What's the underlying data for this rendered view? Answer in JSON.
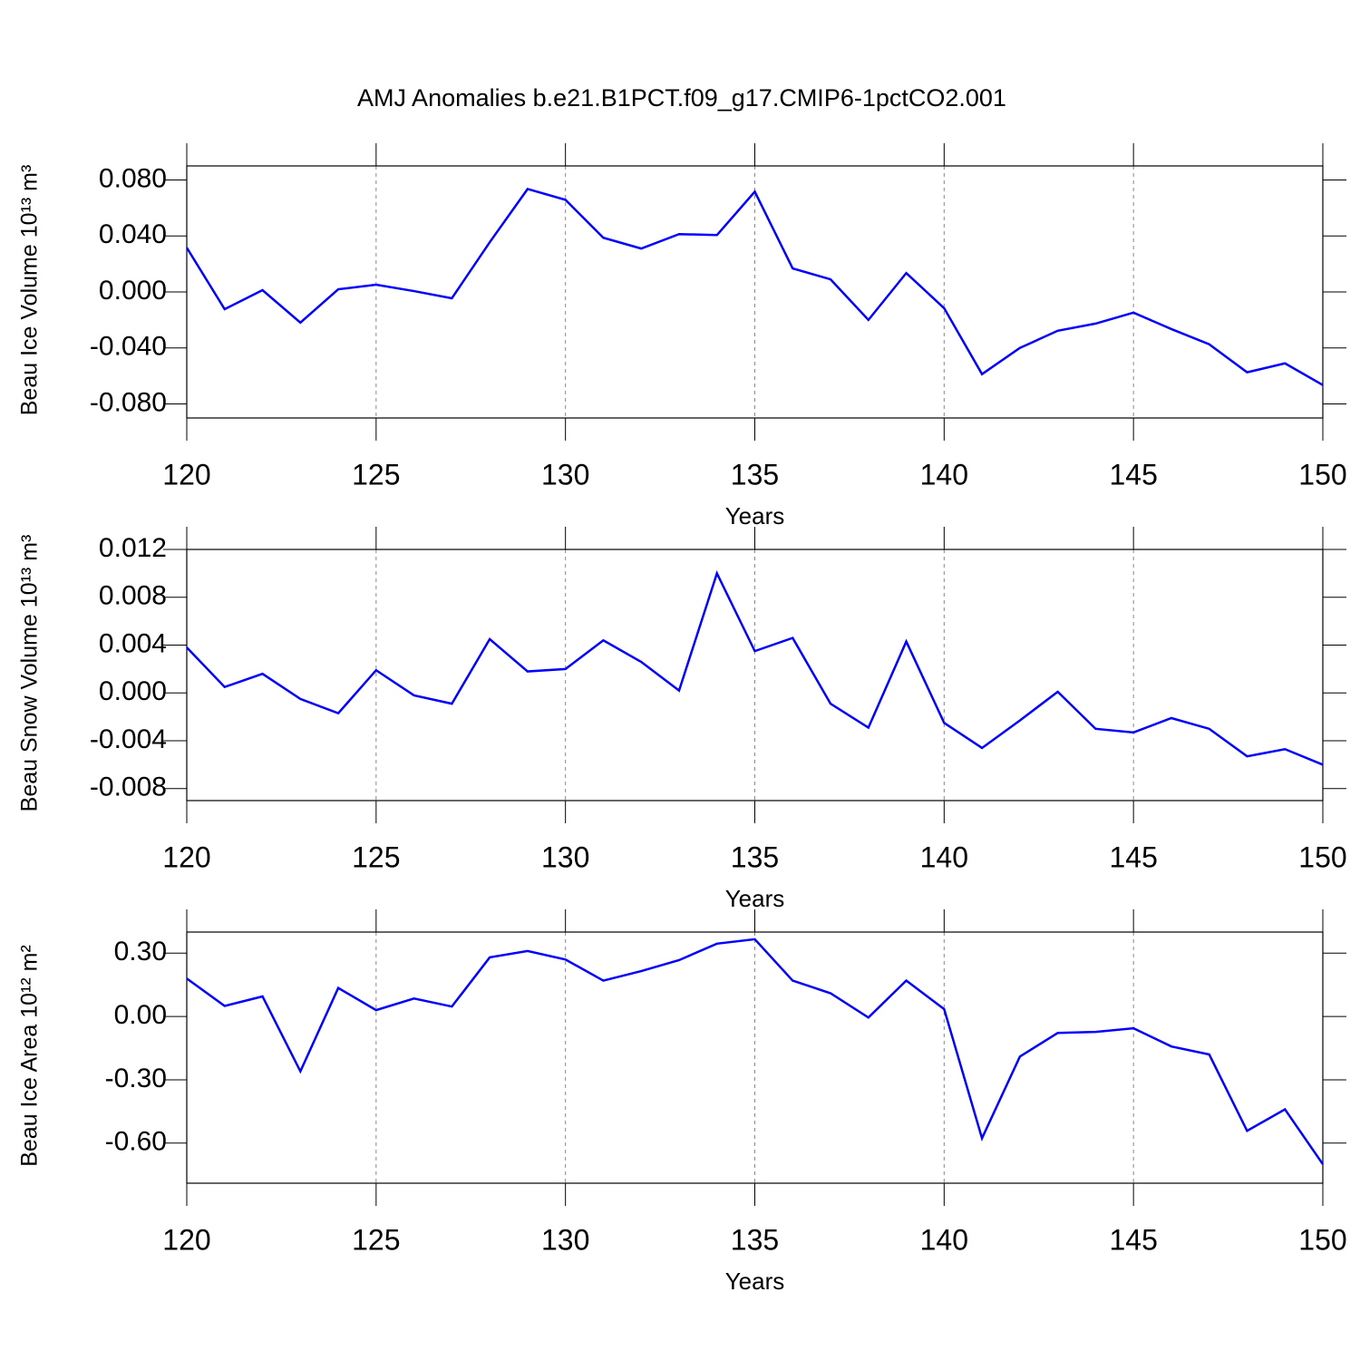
{
  "title": "AMJ Anomalies b.e21.B1PCT.f09_g17.CMIP6-1pctCO2.001",
  "chart_data": [
    {
      "type": "line",
      "ylabel": "Beau Ice Volume 10¹³ m³",
      "xlabel": "Years",
      "x": [
        120,
        121,
        122,
        123,
        124,
        125,
        126,
        127,
        128,
        129,
        130,
        131,
        132,
        133,
        134,
        135,
        136,
        137,
        138,
        139,
        140,
        141,
        142,
        143,
        144,
        145,
        146,
        147,
        148,
        149,
        150
      ],
      "series": [
        {
          "color": "#0000ff",
          "values": [
            0.0316,
            -0.0123,
            0.0013,
            -0.0219,
            0.0019,
            0.0052,
            0.0006,
            -0.0045,
            0.0355,
            0.0735,
            0.0658,
            0.0387,
            0.031,
            0.0413,
            0.0406,
            0.0716,
            0.0168,
            0.009,
            -0.02,
            0.0135,
            -0.0116,
            -0.0587,
            -0.04,
            -0.0277,
            -0.0226,
            -0.0148,
            -0.0265,
            -0.0374,
            -0.0574,
            -0.051,
            -0.0665
          ]
        }
      ],
      "xlim": [
        120,
        150
      ],
      "xticks": [
        120,
        125,
        130,
        135,
        140,
        145,
        150
      ],
      "ylim": [
        -0.09,
        0.09
      ],
      "yticks": [
        {
          "value": 0.08,
          "label": "0.080"
        },
        {
          "value": 0.04,
          "label": "0.040"
        },
        {
          "value": 0,
          "label": "0.000"
        },
        {
          "value": -0.04,
          "label": "-0.040"
        },
        {
          "value": -0.08,
          "label": "-0.080"
        }
      ],
      "grid": true
    },
    {
      "type": "line",
      "ylabel": "Beau Snow Volume 10¹³ m³",
      "xlabel": "Years",
      "x": [
        120,
        121,
        122,
        123,
        124,
        125,
        126,
        127,
        128,
        129,
        130,
        131,
        132,
        133,
        134,
        135,
        136,
        137,
        138,
        139,
        140,
        141,
        142,
        143,
        144,
        145,
        146,
        147,
        148,
        149,
        150
      ],
      "series": [
        {
          "color": "#0000ff",
          "values": [
            0.0038,
            0.0005,
            0.0016,
            -0.0005,
            -0.0017,
            0.0019,
            -0.0002,
            -0.0009,
            0.0045,
            0.0018,
            0.002,
            0.0044,
            0.0026,
            0.0002,
            0.01,
            0.0035,
            0.0046,
            -0.0009,
            -0.0029,
            0.0043,
            -0.0025,
            -0.0046,
            -0.0023,
            0.0001,
            -0.003,
            -0.0033,
            -0.0021,
            -0.003,
            -0.0053,
            -0.0047,
            -0.006
          ]
        }
      ],
      "xlim": [
        120,
        150
      ],
      "xticks": [
        120,
        125,
        130,
        135,
        140,
        145,
        150
      ],
      "ylim": [
        -0.009,
        0.012
      ],
      "yticks": [
        {
          "value": 0.012,
          "label": "0.012"
        },
        {
          "value": 0.008,
          "label": "0.008"
        },
        {
          "value": 0.004,
          "label": "0.004"
        },
        {
          "value": 0,
          "label": "0.000"
        },
        {
          "value": -0.004,
          "label": "-0.004"
        },
        {
          "value": -0.008,
          "label": "-0.008"
        }
      ],
      "grid": true
    },
    {
      "type": "line",
      "ylabel": "Beau Ice Area 10¹² m²",
      "xlabel": "Years",
      "x": [
        120,
        121,
        122,
        123,
        124,
        125,
        126,
        127,
        128,
        129,
        130,
        131,
        132,
        133,
        134,
        135,
        136,
        137,
        138,
        139,
        140,
        141,
        142,
        143,
        144,
        145,
        146,
        147,
        148,
        149,
        150
      ],
      "series": [
        {
          "color": "#0000ff",
          "values": [
            0.18,
            0.05,
            0.095,
            -0.26,
            0.135,
            0.03,
            0.085,
            0.047,
            0.28,
            0.31,
            0.27,
            0.17,
            0.215,
            0.267,
            0.345,
            0.366,
            0.17,
            0.11,
            -0.005,
            0.17,
            0.035,
            -0.577,
            -0.19,
            -0.078,
            -0.073,
            -0.056,
            -0.142,
            -0.18,
            -0.542,
            -0.44,
            -0.7
          ]
        }
      ],
      "xlim": [
        120,
        150
      ],
      "xticks": [
        120,
        125,
        130,
        135,
        140,
        145,
        150
      ],
      "ylim": [
        -0.79,
        0.4
      ],
      "yticks": [
        {
          "value": 0.3,
          "label": "0.30"
        },
        {
          "value": 0,
          "label": "0.00"
        },
        {
          "value": -0.3,
          "label": "-0.30"
        },
        {
          "value": -0.6,
          "label": "-0.60"
        }
      ],
      "grid": true
    }
  ]
}
